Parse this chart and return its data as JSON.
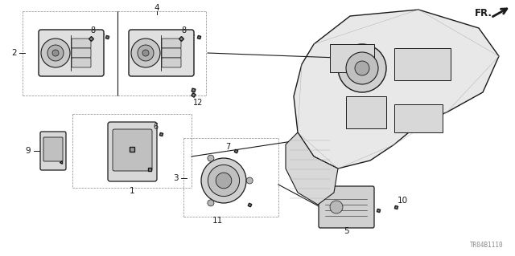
{
  "bg_color": "#ffffff",
  "fig_width": 6.4,
  "fig_height": 3.19,
  "dpi": 100,
  "watermark": "TR04B1110",
  "line_color": "#1a1a1a",
  "gray": "#888888",
  "dark": "#333333"
}
